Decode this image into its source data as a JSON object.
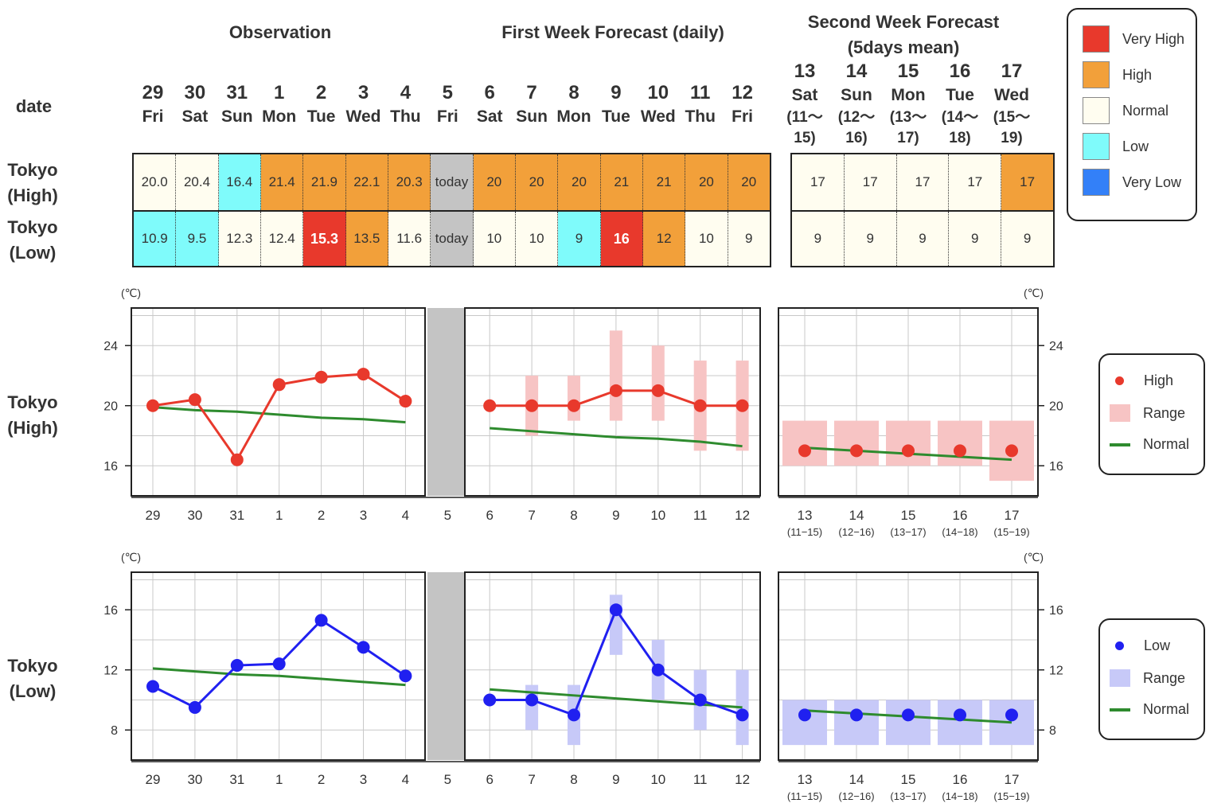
{
  "headers": {
    "observation": "Observation",
    "first_week": "First Week Forecast (daily)",
    "second_week_1": "Second Week Forecast",
    "second_week_2": "(5days mean)"
  },
  "row_labels": {
    "date": "date",
    "high_1": "Tokyo",
    "high_2": "(High)",
    "low_1": "Tokyo",
    "low_2": "(Low)"
  },
  "dates": [
    {
      "d": "29",
      "w": "Fri"
    },
    {
      "d": "30",
      "w": "Sat"
    },
    {
      "d": "31",
      "w": "Sun"
    },
    {
      "d": "1",
      "w": "Mon"
    },
    {
      "d": "2",
      "w": "Tue"
    },
    {
      "d": "3",
      "w": "Wed"
    },
    {
      "d": "4",
      "w": "Thu"
    },
    {
      "d": "5",
      "w": "Fri"
    },
    {
      "d": "6",
      "w": "Sat"
    },
    {
      "d": "7",
      "w": "Sun"
    },
    {
      "d": "8",
      "w": "Mon"
    },
    {
      "d": "9",
      "w": "Tue"
    },
    {
      "d": "10",
      "w": "Wed"
    },
    {
      "d": "11",
      "w": "Thu"
    },
    {
      "d": "12",
      "w": "Fri"
    }
  ],
  "week2_dates": [
    {
      "d": "13",
      "w": "Sat",
      "r1": "(11〜",
      "r2": "15)",
      "range": "(11−15)"
    },
    {
      "d": "14",
      "w": "Sun",
      "r1": "(12〜",
      "r2": "16)",
      "range": "(12−16)"
    },
    {
      "d": "15",
      "w": "Mon",
      "r1": "(13〜",
      "r2": "17)",
      "range": "(13−17)"
    },
    {
      "d": "16",
      "w": "Tue",
      "r1": "(14〜",
      "r2": "18)",
      "range": "(14−18)"
    },
    {
      "d": "17",
      "w": "Wed",
      "r1": "(15〜",
      "r2": "19)",
      "range": "(15−19)"
    }
  ],
  "table": {
    "high": [
      {
        "v": "20.0",
        "c": "normal"
      },
      {
        "v": "20.4",
        "c": "normal"
      },
      {
        "v": "16.4",
        "c": "low"
      },
      {
        "v": "21.4",
        "c": "high"
      },
      {
        "v": "21.9",
        "c": "high"
      },
      {
        "v": "22.1",
        "c": "high"
      },
      {
        "v": "20.3",
        "c": "high"
      },
      {
        "v": "today",
        "c": "today"
      },
      {
        "v": "20",
        "c": "high"
      },
      {
        "v": "20",
        "c": "high"
      },
      {
        "v": "20",
        "c": "high"
      },
      {
        "v": "21",
        "c": "high"
      },
      {
        "v": "21",
        "c": "high"
      },
      {
        "v": "20",
        "c": "high"
      },
      {
        "v": "20",
        "c": "high"
      }
    ],
    "low": [
      {
        "v": "10.9",
        "c": "low"
      },
      {
        "v": "9.5",
        "c": "low"
      },
      {
        "v": "12.3",
        "c": "normal"
      },
      {
        "v": "12.4",
        "c": "normal"
      },
      {
        "v": "15.3",
        "c": "veryhigh"
      },
      {
        "v": "13.5",
        "c": "high"
      },
      {
        "v": "11.6",
        "c": "normal"
      },
      {
        "v": "today",
        "c": "today"
      },
      {
        "v": "10",
        "c": "normal"
      },
      {
        "v": "10",
        "c": "normal"
      },
      {
        "v": "9",
        "c": "low"
      },
      {
        "v": "16",
        "c": "veryhigh"
      },
      {
        "v": "12",
        "c": "high"
      },
      {
        "v": "10",
        "c": "normal"
      },
      {
        "v": "9",
        "c": "normal"
      }
    ],
    "week2_high": [
      {
        "v": "17",
        "c": "normal"
      },
      {
        "v": "17",
        "c": "normal"
      },
      {
        "v": "17",
        "c": "normal"
      },
      {
        "v": "17",
        "c": "normal"
      },
      {
        "v": "17",
        "c": "high"
      }
    ],
    "week2_low": [
      {
        "v": "9",
        "c": "normal"
      },
      {
        "v": "9",
        "c": "normal"
      },
      {
        "v": "9",
        "c": "normal"
      },
      {
        "v": "9",
        "c": "normal"
      },
      {
        "v": "9",
        "c": "normal"
      }
    ]
  },
  "colors": {
    "veryhigh": "#e8392c",
    "high": "#f2a03a",
    "normal": "#fffdf0",
    "low": "#7ffbfb",
    "verylow": "#3380f8",
    "today": "#c4c4c4",
    "high_line": "#e8392c",
    "high_range": "#f7c4c4",
    "low_line": "#2020f0",
    "low_range": "#c7c9f8",
    "normal_line": "#2e8b2e"
  },
  "category_legend": [
    {
      "label": "Very High",
      "c": "veryhigh"
    },
    {
      "label": "High",
      "c": "high"
    },
    {
      "label": "Normal",
      "c": "normal"
    },
    {
      "label": "Low",
      "c": "low"
    },
    {
      "label": "Very Low",
      "c": "verylow"
    }
  ],
  "high_legend": {
    "point": "High",
    "range": "Range",
    "normal": "Normal"
  },
  "low_legend": {
    "point": "Low",
    "range": "Range",
    "normal": "Normal"
  },
  "unit_label": "(℃)",
  "chart_data": [
    {
      "type": "line",
      "name": "Tokyo (High)",
      "x": [
        "29",
        "30",
        "31",
        "1",
        "2",
        "3",
        "4",
        "5",
        "6",
        "7",
        "8",
        "9",
        "10",
        "11",
        "12"
      ],
      "observed": [
        20.0,
        20.4,
        16.4,
        21.4,
        21.9,
        22.1,
        20.3
      ],
      "forecast": [
        20,
        20,
        20,
        21,
        21,
        20,
        20
      ],
      "forecast_range": [
        [
          20,
          20
        ],
        [
          18,
          22
        ],
        [
          19,
          22
        ],
        [
          19,
          25
        ],
        [
          19,
          24
        ],
        [
          17,
          23
        ],
        [
          17,
          23
        ]
      ],
      "normal_week1_obs": [
        19.9,
        19.7,
        19.6,
        19.4,
        19.2,
        19.1,
        18.9
      ],
      "normal_week1_fc": [
        18.5,
        18.3,
        18.1,
        17.9,
        17.8,
        17.6,
        17.3
      ],
      "week2_x": [
        "13",
        "14",
        "15",
        "16",
        "17"
      ],
      "week2": [
        17,
        17,
        17,
        17,
        17
      ],
      "week2_range": [
        [
          16,
          19
        ],
        [
          16,
          19
        ],
        [
          16,
          19
        ],
        [
          16,
          19
        ],
        [
          15,
          19
        ]
      ],
      "week2_normal": [
        17.2,
        17.0,
        16.8,
        16.6,
        16.4
      ],
      "ylim": [
        14,
        26.5
      ],
      "yticks": [
        16,
        20,
        24
      ]
    },
    {
      "type": "line",
      "name": "Tokyo (Low)",
      "x": [
        "29",
        "30",
        "31",
        "1",
        "2",
        "3",
        "4",
        "5",
        "6",
        "7",
        "8",
        "9",
        "10",
        "11",
        "12"
      ],
      "observed": [
        10.9,
        9.5,
        12.3,
        12.4,
        15.3,
        13.5,
        11.6
      ],
      "forecast": [
        10,
        10,
        9,
        16,
        12,
        10,
        9
      ],
      "forecast_range": [
        [
          10,
          10
        ],
        [
          8,
          11
        ],
        [
          7,
          11
        ],
        [
          13,
          17
        ],
        [
          10,
          14
        ],
        [
          8,
          12
        ],
        [
          7,
          12
        ]
      ],
      "normal_week1_obs": [
        12.1,
        11.9,
        11.7,
        11.6,
        11.4,
        11.2,
        11.0
      ],
      "normal_week1_fc": [
        10.7,
        10.5,
        10.3,
        10.1,
        9.9,
        9.7,
        9.5
      ],
      "week2_x": [
        "13",
        "14",
        "15",
        "16",
        "17"
      ],
      "week2": [
        9,
        9,
        9,
        9,
        9
      ],
      "week2_range": [
        [
          7,
          10
        ],
        [
          7,
          10
        ],
        [
          7,
          10
        ],
        [
          7,
          10
        ],
        [
          7,
          10
        ]
      ],
      "week2_normal": [
        9.3,
        9.1,
        8.9,
        8.7,
        8.5
      ],
      "ylim": [
        6,
        18.5
      ],
      "yticks": [
        8,
        12,
        16
      ]
    }
  ]
}
